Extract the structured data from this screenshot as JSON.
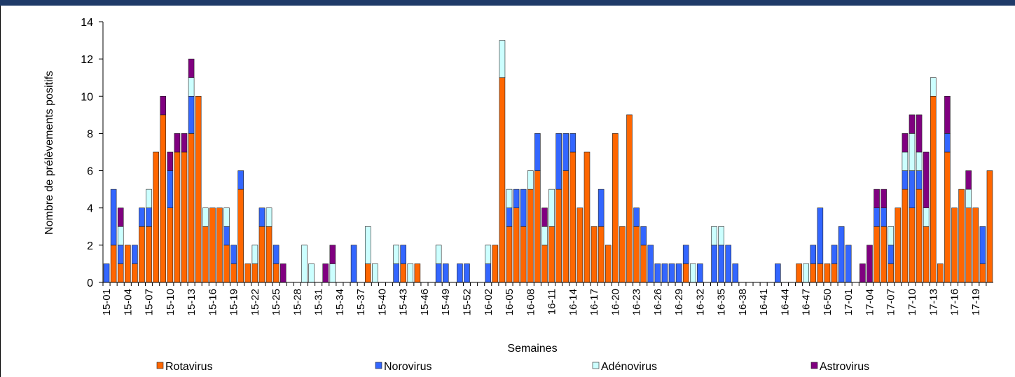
{
  "chart_data": {
    "type": "stacked_bar",
    "y_label": "Nombre de prélèvements positifs",
    "x_label": "Semaines",
    "categories": [
      "15-01",
      null,
      null,
      "15-04",
      null,
      null,
      "15-07",
      null,
      null,
      "15-10",
      null,
      null,
      "15-13",
      null,
      null,
      "15-16",
      null,
      null,
      "15-19",
      null,
      null,
      "15-22",
      null,
      null,
      "15-25",
      null,
      null,
      "15-28",
      null,
      null,
      "15-31",
      null,
      null,
      "15-34",
      null,
      null,
      "15-37",
      null,
      null,
      "15-40",
      null,
      null,
      "15-43",
      null,
      null,
      "15-46",
      null,
      null,
      "15-49",
      null,
      null,
      "15-52",
      null,
      null,
      "16-02",
      null,
      null,
      "16-05",
      null,
      null,
      "16-08",
      null,
      null,
      "16-11",
      null,
      null,
      "16-14",
      null,
      null,
      "16-17",
      null,
      null,
      "16-20",
      null,
      null,
      "16-23",
      null,
      null,
      "16-26",
      null,
      null,
      "16-29",
      null,
      null,
      "16-32",
      null,
      null,
      "16-35",
      null,
      null,
      "16-38",
      null,
      null,
      "16-41",
      null,
      null,
      "16-44",
      null,
      null,
      "16-47",
      null,
      null,
      "16-50",
      null,
      null,
      "17-01",
      null,
      null,
      "17-04",
      null,
      null,
      "17-07",
      null,
      null,
      "17-10",
      null,
      null,
      "17-13",
      null,
      null,
      "17-16",
      null,
      null,
      "17-19",
      null,
      null
    ],
    "series": [
      {
        "name": "Rotavirus",
        "color": "#ff6600",
        "values": [
          0,
          2,
          1,
          2,
          1,
          3,
          3,
          7,
          9,
          4,
          7,
          7,
          8,
          10,
          3,
          4,
          4,
          2,
          1,
          5,
          1,
          1,
          3,
          3,
          1,
          0,
          0,
          0,
          0,
          0,
          0,
          0,
          0,
          0,
          0,
          0,
          0,
          1,
          0,
          0,
          0,
          0,
          1,
          0,
          1,
          0,
          0,
          0,
          0,
          0,
          0,
          0,
          0,
          0,
          0,
          2,
          11,
          3,
          4,
          3,
          5,
          6,
          2,
          3,
          5,
          6,
          7,
          4,
          7,
          3,
          3,
          2,
          8,
          3,
          9,
          3,
          2,
          0,
          0,
          0,
          0,
          0,
          1,
          0,
          0,
          0,
          0,
          0,
          0,
          0,
          0,
          0,
          0,
          0,
          0,
          0,
          0,
          0,
          1,
          0,
          1,
          1,
          1,
          1,
          0,
          0,
          0,
          0,
          0,
          3,
          3,
          1,
          4,
          5,
          4,
          5,
          3,
          10,
          1,
          7,
          4,
          5,
          4,
          4,
          1,
          6
        ]
      },
      {
        "name": "Norovirus",
        "color": "#3366ff",
        "values": [
          1,
          3,
          1,
          0,
          1,
          1,
          1,
          0,
          0,
          2,
          0,
          0,
          2,
          0,
          0,
          0,
          0,
          1,
          1,
          1,
          0,
          0,
          1,
          0,
          1,
          0,
          0,
          0,
          0,
          0,
          0,
          0,
          0,
          0,
          0,
          2,
          0,
          0,
          0,
          0,
          0,
          1,
          1,
          0,
          0,
          0,
          0,
          1,
          1,
          0,
          1,
          1,
          0,
          0,
          1,
          0,
          0,
          1,
          1,
          2,
          0,
          2,
          0,
          0,
          3,
          2,
          1,
          0,
          0,
          0,
          2,
          0,
          0,
          0,
          0,
          1,
          1,
          2,
          1,
          1,
          1,
          1,
          1,
          0,
          1,
          0,
          2,
          2,
          2,
          1,
          0,
          0,
          0,
          0,
          0,
          1,
          0,
          0,
          0,
          0,
          1,
          3,
          0,
          1,
          3,
          2,
          0,
          0,
          0,
          1,
          1,
          1,
          0,
          1,
          2,
          1,
          0,
          0,
          0,
          1,
          0,
          0,
          0,
          0,
          2,
          0
        ]
      },
      {
        "name": "Adénovirus",
        "color": "#ccffff",
        "values": [
          0,
          0,
          1,
          0,
          0,
          0,
          1,
          0,
          0,
          0,
          0,
          0,
          1,
          0,
          1,
          0,
          0,
          1,
          0,
          0,
          0,
          1,
          0,
          1,
          0,
          0,
          0,
          0,
          2,
          1,
          0,
          0,
          1,
          0,
          0,
          0,
          0,
          2,
          1,
          0,
          0,
          1,
          0,
          1,
          0,
          0,
          0,
          1,
          0,
          0,
          0,
          0,
          0,
          0,
          1,
          0,
          2,
          1,
          0,
          0,
          1,
          0,
          1,
          2,
          0,
          0,
          0,
          0,
          0,
          0,
          0,
          0,
          0,
          0,
          0,
          0,
          0,
          0,
          0,
          0,
          0,
          0,
          0,
          1,
          0,
          0,
          1,
          1,
          0,
          0,
          0,
          0,
          0,
          0,
          0,
          0,
          0,
          0,
          0,
          1,
          0,
          0,
          0,
          0,
          0,
          0,
          0,
          0,
          0,
          0,
          0,
          1,
          0,
          1,
          2,
          1,
          1,
          1,
          0,
          0,
          0,
          0,
          1,
          0,
          0,
          0
        ]
      },
      {
        "name": "Astrovirus",
        "color": "#800080",
        "values": [
          0,
          0,
          1,
          0,
          0,
          0,
          0,
          0,
          1,
          1,
          1,
          1,
          1,
          0,
          0,
          0,
          0,
          0,
          0,
          0,
          0,
          0,
          0,
          0,
          0,
          1,
          0,
          0,
          0,
          0,
          0,
          1,
          1,
          0,
          0,
          0,
          0,
          0,
          0,
          0,
          0,
          0,
          0,
          0,
          0,
          0,
          0,
          0,
          0,
          0,
          0,
          0,
          0,
          0,
          0,
          0,
          0,
          0,
          0,
          0,
          0,
          0,
          1,
          0,
          0,
          0,
          0,
          0,
          0,
          0,
          0,
          0,
          0,
          0,
          0,
          0,
          0,
          0,
          0,
          0,
          0,
          0,
          0,
          0,
          0,
          0,
          0,
          0,
          0,
          0,
          0,
          0,
          0,
          0,
          0,
          0,
          0,
          0,
          0,
          0,
          0,
          0,
          0,
          0,
          0,
          0,
          0,
          1,
          2,
          1,
          1,
          0,
          0,
          1,
          1,
          2,
          3,
          0,
          0,
          2,
          0,
          0,
          1,
          0,
          0,
          0
        ]
      }
    ],
    "ylim": [
      0,
      14
    ],
    "yticks": [
      0,
      2,
      4,
      6,
      8,
      10,
      12,
      14
    ],
    "grid": false,
    "legend": "bottom"
  }
}
